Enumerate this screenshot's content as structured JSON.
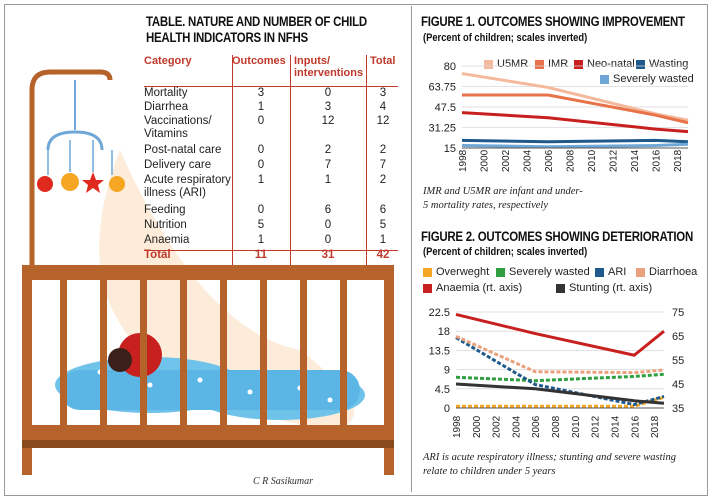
{
  "table": {
    "title_line1": "TABLE. NATURE AND NUMBER OF CHILD",
    "title_line2": "HEALTH INDICATORS IN NFHS",
    "headers": [
      "Category",
      "Outcomes",
      "Inputs/ interventions",
      "Total"
    ],
    "rows": [
      [
        "Mortality",
        "3",
        "0",
        "3"
      ],
      [
        "Diarrhea",
        "1",
        "3",
        "4"
      ],
      [
        "Vaccinations/ Vitamins",
        "0",
        "12",
        "12"
      ],
      [
        "Post-natal care",
        "0",
        "2",
        "2"
      ],
      [
        "Delivery care",
        "0",
        "7",
        "7"
      ],
      [
        "Acute respiratory illness (ARI)",
        "1",
        "1",
        "2"
      ],
      [
        "Feeding",
        "0",
        "6",
        "6"
      ],
      [
        "Nutrition",
        "5",
        "0",
        "5"
      ],
      [
        "Anaemia",
        "1",
        "0",
        "1"
      ]
    ],
    "total": [
      "Total",
      "11",
      "31",
      "42"
    ]
  },
  "credit": "C R Sasikumar",
  "chart_data": [
    {
      "type": "line",
      "title": "FIGURE 1. OUTCOMES SHOWING IMPROVEMENT",
      "subtitle": "(Percent of children; scales inverted)",
      "note_line1": "IMR and U5MR are infant and under-",
      "note_line2": "5 mortality rates, respectively",
      "x": [
        1998,
        2000,
        2002,
        2004,
        2006,
        2008,
        2010,
        2012,
        2014,
        2016,
        2018
      ],
      "x_ticks": [
        "1998",
        "2000",
        "2002",
        "2004",
        "2006",
        "2008",
        "2010",
        "2012",
        "2014",
        "2016",
        "2018"
      ],
      "ylim": [
        15,
        80
      ],
      "y_ticks": [
        "80",
        "63.75",
        "47.5",
        "31.25",
        "15"
      ],
      "series": [
        {
          "name": "U5MR",
          "color": "#f4b89a",
          "points": [
            [
              1998,
              74
            ],
            [
              2006,
              63
            ],
            [
              2016,
              42
            ],
            [
              2019,
              37
            ]
          ]
        },
        {
          "name": "IMR",
          "color": "#e8734a",
          "points": [
            [
              1998,
              57
            ],
            [
              2006,
              57
            ],
            [
              2016,
              41
            ],
            [
              2019,
              35
            ]
          ]
        },
        {
          "name": "Neo-natal",
          "color": "#c8201e",
          "points": [
            [
              1998,
              43
            ],
            [
              2006,
              39
            ],
            [
              2016,
              30
            ],
            [
              2019,
              28
            ]
          ]
        },
        {
          "name": "Wasting",
          "color": "#1f5a8c",
          "points": [
            [
              1998,
              21
            ],
            [
              2006,
              20
            ],
            [
              2016,
              21
            ],
            [
              2019,
              20
            ]
          ]
        },
        {
          "name": "Severely wasted",
          "color": "#6fa8d8",
          "points": [
            [
              1998,
              17
            ],
            [
              2006,
              16
            ],
            [
              2016,
              17
            ],
            [
              2019,
              18
            ]
          ]
        }
      ]
    },
    {
      "type": "line",
      "title": "FIGURE 2. OUTCOMES SHOWING DETERIORATION",
      "subtitle": "(Percent of children; scales inverted)",
      "note_line1": "ARI is acute respiratory illness; stunting and severe wasting",
      "note_line2": "relate to children under 5 years",
      "x": [
        1998,
        2000,
        2002,
        2004,
        2006,
        2008,
        2010,
        2012,
        2014,
        2016,
        2018
      ],
      "x_ticks": [
        "1998",
        "2000",
        "2002",
        "2004",
        "2006",
        "2008",
        "2010",
        "2012",
        "2014",
        "2016",
        "2018"
      ],
      "ylim_left": [
        0,
        22.5
      ],
      "y_ticks_left": [
        "22.5",
        "18",
        "13.5",
        "9",
        "4.5",
        "0"
      ],
      "ylim_right": [
        35,
        75
      ],
      "y_ticks_right": [
        "75",
        "65",
        "55",
        "45",
        "35"
      ],
      "series": [
        {
          "name": "Overweght",
          "axis": "left",
          "color": "#f5a623",
          "style": "dashed",
          "points": [
            [
              1998,
              0.4
            ],
            [
              2006,
              0.4
            ],
            [
              2016,
              0.4
            ],
            [
              2019,
              2.5
            ]
          ]
        },
        {
          "name": "Severely wasted",
          "axis": "left",
          "color": "#2e9e3e",
          "style": "dashed",
          "points": [
            [
              1998,
              7.2
            ],
            [
              2006,
              6.4
            ],
            [
              2016,
              7.4
            ],
            [
              2019,
              7.9
            ]
          ]
        },
        {
          "name": "ARI",
          "axis": "left",
          "color": "#1f5a8c",
          "style": "dashed",
          "points": [
            [
              1998,
              16.5
            ],
            [
              2006,
              5.5
            ],
            [
              2016,
              0.8
            ],
            [
              2019,
              2.7
            ]
          ]
        },
        {
          "name": "Diarrhoea",
          "axis": "left",
          "color": "#eaa07a",
          "style": "dashed",
          "points": [
            [
              1998,
              16.8
            ],
            [
              2006,
              8.5
            ],
            [
              2016,
              8.3
            ],
            [
              2019,
              8.9
            ]
          ]
        },
        {
          "name": "Anaemia (rt. axis)",
          "axis": "right",
          "color": "#c8201e",
          "style": "solid",
          "points": [
            [
              1998,
              74
            ],
            [
              2006,
              66
            ],
            [
              2016,
              57
            ],
            [
              2019,
              67
            ]
          ]
        },
        {
          "name": "Stunting (rt. axis)",
          "axis": "right",
          "color": "#333333",
          "style": "solid",
          "points": [
            [
              1998,
              45
            ],
            [
              2006,
              43
            ],
            [
              2016,
              38
            ],
            [
              2019,
              37
            ]
          ]
        }
      ]
    }
  ]
}
